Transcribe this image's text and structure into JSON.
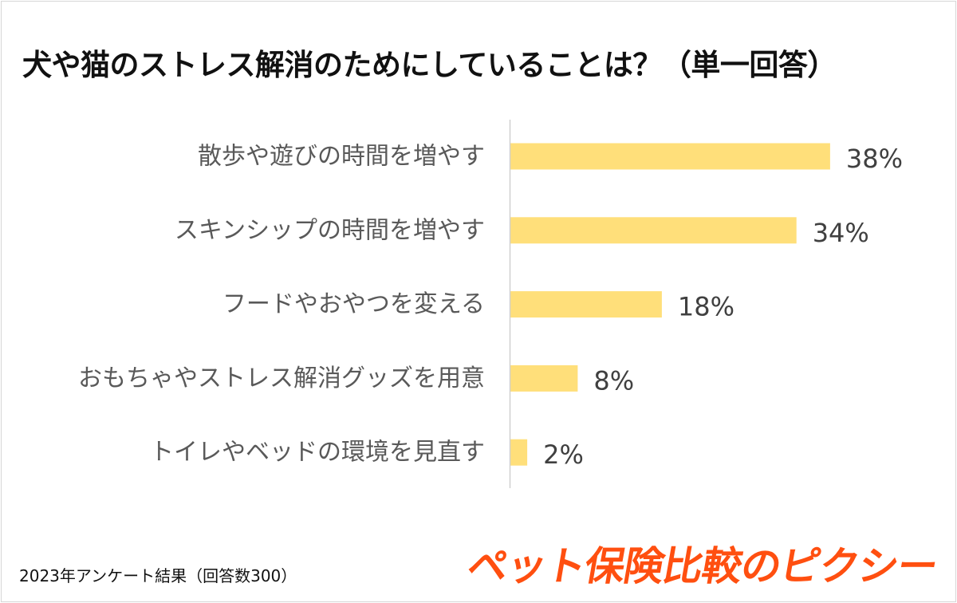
{
  "title": "犬や猫のストレス解消のためにしていることは？（単一回答）",
  "footnote": "2023年アンケート結果（回答数300）",
  "logo_text": "ペット保険比較のピクシー",
  "colors": {
    "bar": "#FFDF7A",
    "axis": "#D0D0D0",
    "logo": "#FF4F10"
  },
  "chart_data": {
    "type": "bar",
    "orientation": "horizontal",
    "categories": [
      "散歩や遊びの時間を増やす",
      "スキンシップの時間を増やす",
      "フードやおやつを変える",
      "おもちゃやストレス解消グッズを用意",
      "トイレやベッドの環境を見直す"
    ],
    "values": [
      38,
      34,
      18,
      8,
      2
    ],
    "value_labels": [
      "38%",
      "34%",
      "18%",
      "8%",
      "2%"
    ],
    "unit": "%",
    "xlim": [
      0,
      40
    ],
    "grid": false,
    "legend": "none"
  }
}
